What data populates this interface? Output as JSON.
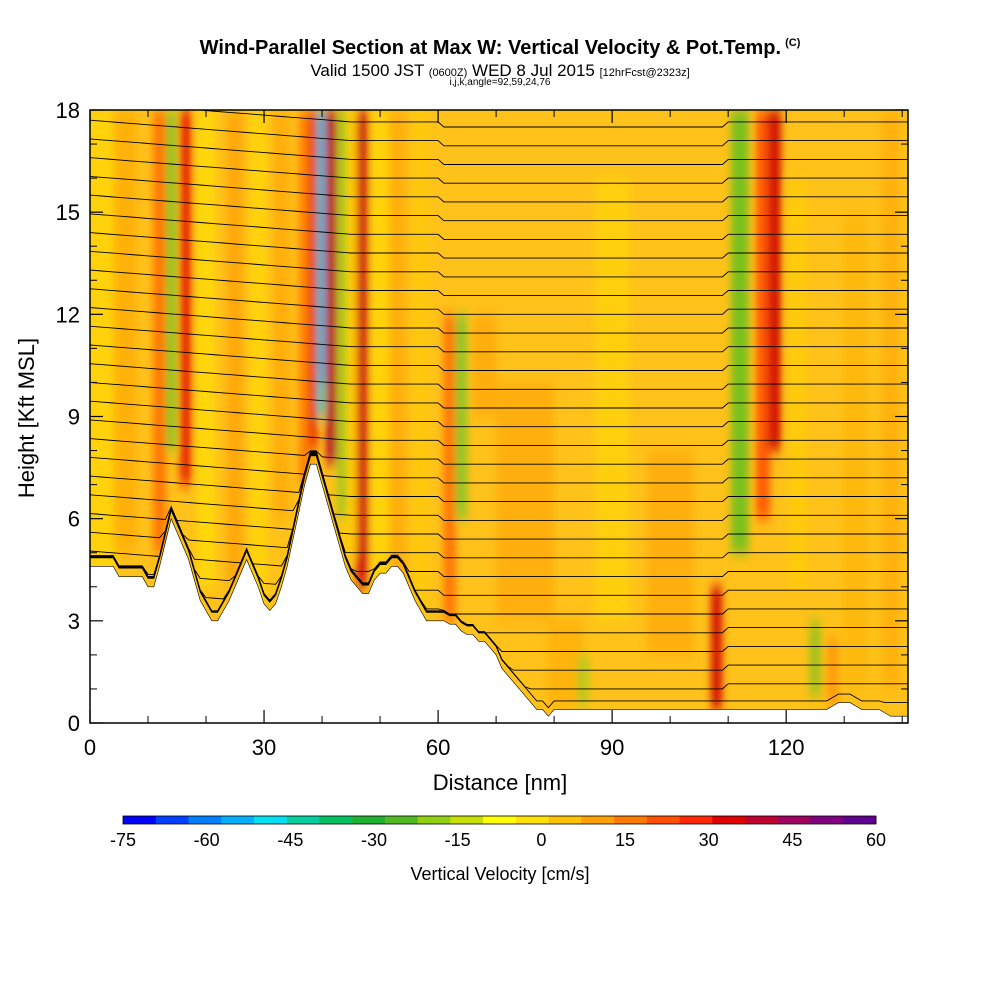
{
  "title": {
    "main": "Wind-Parallel Section at Max W: Vertical Velocity & Pot.Temp.",
    "copyright": "(C)",
    "valid_prefix": "Valid 1500 JST",
    "utc": "(0600Z)",
    "date": "WED 8 Jul 2015",
    "forecast": "[12hrFcst@2323z]",
    "indices": "i,j,k,angle=92,59,24,76"
  },
  "chart_data": {
    "type": "heatmap",
    "xlabel": "Distance [nm]",
    "ylabel": "Height [Kft MSL]",
    "xlim": [
      0,
      141
    ],
    "ylim": [
      0,
      18
    ],
    "x_ticks": [
      0,
      30,
      60,
      90,
      120
    ],
    "y_ticks": [
      0,
      3,
      6,
      9,
      12,
      15,
      18
    ],
    "colorbar": {
      "label": "Vertical Velocity [cm/s]",
      "min": -75,
      "max": 60,
      "tick_values": [
        -75,
        -60,
        -45,
        -30,
        -15,
        0,
        15,
        30,
        45,
        60
      ],
      "colors": [
        "#0000ff",
        "#0040ff",
        "#0080ff",
        "#00b0ff",
        "#00e0f0",
        "#00d0a0",
        "#00c060",
        "#20b030",
        "#50b820",
        "#90d010",
        "#c8e000",
        "#ffff00",
        "#ffe000",
        "#ffc000",
        "#ffa000",
        "#ff7800",
        "#ff5000",
        "#ff2800",
        "#e00000",
        "#c00030",
        "#a00060",
        "#800080",
        "#600090"
      ]
    },
    "contour_field": "Potential temperature",
    "updraft_columns_nm": [
      12,
      16,
      38,
      41,
      47,
      108,
      118
    ],
    "downdraft_columns_nm": [
      14,
      40,
      64,
      112,
      126
    ],
    "terrain_kft": [
      [
        0,
        4.6
      ],
      [
        4,
        4.6
      ],
      [
        5,
        4.3
      ],
      [
        9,
        4.3
      ],
      [
        10,
        4.0
      ],
      [
        11,
        4.0
      ],
      [
        12,
        4.6
      ],
      [
        13,
        5.3
      ],
      [
        14,
        6.0
      ],
      [
        15,
        5.6
      ],
      [
        16,
        5.2
      ],
      [
        17,
        4.8
      ],
      [
        18,
        4.2
      ],
      [
        19,
        3.6
      ],
      [
        20,
        3.3
      ],
      [
        21,
        3.0
      ],
      [
        22,
        3.0
      ],
      [
        23,
        3.3
      ],
      [
        24,
        3.6
      ],
      [
        25,
        4.0
      ],
      [
        26,
        4.4
      ],
      [
        27,
        4.8
      ],
      [
        28,
        4.4
      ],
      [
        29,
        4.0
      ],
      [
        30,
        3.5
      ],
      [
        31,
        3.3
      ],
      [
        32,
        3.5
      ],
      [
        33,
        4.0
      ],
      [
        34,
        4.6
      ],
      [
        35,
        5.4
      ],
      [
        36,
        6.2
      ],
      [
        37,
        7.0
      ],
      [
        38,
        7.6
      ],
      [
        39,
        7.6
      ],
      [
        40,
        7.0
      ],
      [
        41,
        6.4
      ],
      [
        42,
        5.8
      ],
      [
        43,
        5.2
      ],
      [
        44,
        4.6
      ],
      [
        45,
        4.2
      ],
      [
        46,
        4.0
      ],
      [
        47,
        3.8
      ],
      [
        48,
        3.8
      ],
      [
        49,
        4.2
      ],
      [
        50,
        4.4
      ],
      [
        51,
        4.4
      ],
      [
        52,
        4.6
      ],
      [
        53,
        4.6
      ],
      [
        54,
        4.4
      ],
      [
        55,
        4.0
      ],
      [
        56,
        3.6
      ],
      [
        57,
        3.3
      ],
      [
        58,
        3.0
      ],
      [
        60,
        3.0
      ],
      [
        61,
        3.0
      ],
      [
        62,
        2.9
      ],
      [
        63,
        2.9
      ],
      [
        64,
        2.7
      ],
      [
        65,
        2.6
      ],
      [
        66,
        2.6
      ],
      [
        67,
        2.4
      ],
      [
        68,
        2.4
      ],
      [
        69,
        2.2
      ],
      [
        70,
        2.0
      ],
      [
        71,
        1.6
      ],
      [
        72,
        1.4
      ],
      [
        73,
        1.2
      ],
      [
        74,
        1.0
      ],
      [
        75,
        0.8
      ],
      [
        76,
        0.6
      ],
      [
        77,
        0.4
      ],
      [
        78,
        0.4
      ],
      [
        79,
        0.2
      ],
      [
        80,
        0.4
      ],
      [
        81,
        0.4
      ],
      [
        82,
        0.4
      ],
      [
        83,
        0.4
      ],
      [
        84,
        0.4
      ],
      [
        85,
        0.4
      ],
      [
        86,
        0.4
      ],
      [
        87,
        0.4
      ],
      [
        88,
        0.4
      ],
      [
        90,
        0.4
      ],
      [
        100,
        0.4
      ],
      [
        110,
        0.4
      ],
      [
        120,
        0.4
      ],
      [
        127,
        0.4
      ],
      [
        128,
        0.5
      ],
      [
        129,
        0.6
      ],
      [
        130,
        0.6
      ],
      [
        131,
        0.6
      ],
      [
        132,
        0.5
      ],
      [
        133,
        0.4
      ],
      [
        136,
        0.4
      ],
      [
        138,
        0.2
      ],
      [
        141,
        0.2
      ]
    ]
  }
}
